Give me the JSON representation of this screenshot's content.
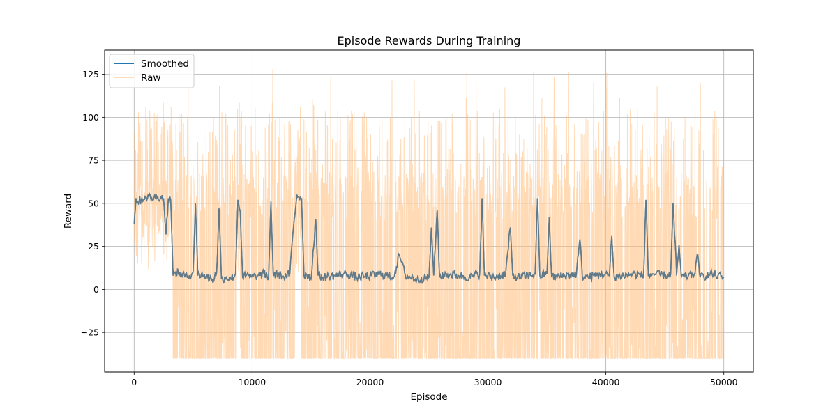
{
  "chart_data": {
    "type": "line",
    "title": "Episode Rewards During Training",
    "xlabel": "Episode",
    "ylabel": "Reward",
    "xlim": [
      -2500,
      52500
    ],
    "ylim": [
      -48,
      139
    ],
    "xticks": [
      0,
      10000,
      20000,
      30000,
      40000,
      50000
    ],
    "yticks": [
      -25,
      0,
      25,
      50,
      75,
      100,
      125
    ],
    "grid": true,
    "legend_position": "top-left",
    "series": [
      {
        "name": "Smoothed",
        "color": "#1f77b4",
        "x": [
          0,
          150,
          300,
          600,
          1000,
          1500,
          2000,
          2500,
          2700,
          2900,
          3100,
          3300,
          3500,
          4000,
          4500,
          5000,
          5200,
          5400,
          5700,
          6200,
          6700,
          7000,
          7200,
          7400,
          7800,
          8200,
          8600,
          8800,
          9000,
          9200,
          9500,
          10000,
          10500,
          11000,
          11400,
          11600,
          11800,
          12200,
          12700,
          13200,
          13500,
          13800,
          14200,
          14400,
          14600,
          15000,
          15400,
          15600,
          16000,
          17000,
          18000,
          19000,
          20000,
          21000,
          22000,
          22500,
          23000,
          24000,
          25000,
          25200,
          25400,
          25700,
          25900,
          26500,
          27500,
          28500,
          29300,
          29500,
          29700,
          30500,
          31500,
          31900,
          32100,
          32500,
          33500,
          34000,
          34200,
          34400,
          35000,
          35200,
          35400,
          36500,
          37500,
          37800,
          38000,
          38500,
          39500,
          40300,
          40500,
          40700,
          41500,
          42500,
          43200,
          43400,
          43600,
          44000,
          45000,
          45500,
          45700,
          46000,
          46200,
          46400,
          47000,
          47500,
          47800,
          48000,
          48500,
          49000,
          49500,
          50000
        ],
        "y": [
          38,
          53,
          51,
          52,
          54,
          53,
          54,
          53,
          32,
          53,
          52,
          8,
          10,
          9,
          7,
          10,
          50,
          8,
          9,
          7,
          6,
          10,
          47,
          6,
          7,
          6,
          9,
          52,
          45,
          7,
          8,
          7,
          8,
          9,
          7,
          51,
          8,
          9,
          7,
          9,
          35,
          55,
          53,
          8,
          9,
          6,
          41,
          8,
          7,
          8,
          9,
          7,
          8,
          9,
          7,
          20,
          8,
          6,
          7,
          36,
          8,
          46,
          7,
          9,
          8,
          7,
          9,
          53,
          8,
          7,
          9,
          36,
          8,
          7,
          8,
          9,
          53,
          8,
          9,
          42,
          7,
          8,
          9,
          29,
          8,
          7,
          9,
          8,
          31,
          7,
          8,
          9,
          8,
          52,
          8,
          9,
          8,
          9,
          50,
          8,
          26,
          7,
          8,
          9,
          20,
          7,
          8,
          9,
          8,
          7
        ]
      },
      {
        "name": "Raw",
        "color": "#ffbb78"
      }
    ]
  }
}
